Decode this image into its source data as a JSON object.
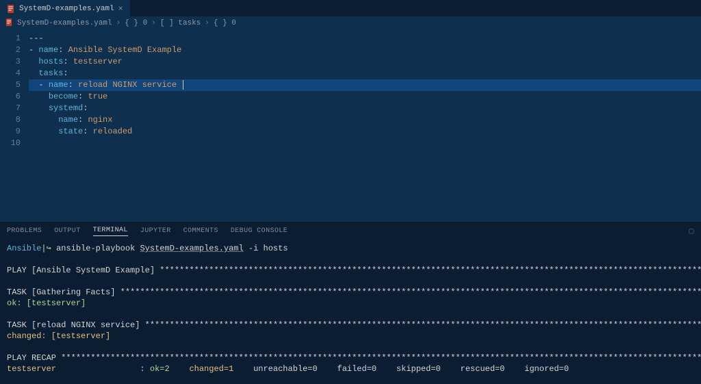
{
  "colors": {
    "editor_bg": "#0f2f4e",
    "panel_bg": "#0b1d33",
    "gutter_fg": "#6c7a8c",
    "text": "#d4d4d4",
    "key": "#5fb4d8",
    "string": "#d09a6a",
    "highlight_bg": "#12467a",
    "term_green": "#a6da95",
    "term_yellow": "#e5c07b",
    "term_cyan": "#5fb4d8",
    "file_icon": "#c0392b"
  },
  "tab": {
    "filename": "SystemD-examples.yaml",
    "dirty": false
  },
  "breadcrumbs": {
    "items": [
      {
        "icon": "file",
        "text": "SystemD-examples.yaml"
      },
      {
        "icon": "braces",
        "text": "{ } 0"
      },
      {
        "icon": "brackets",
        "text": "[  ] tasks"
      },
      {
        "icon": "braces",
        "text": "{ } 0"
      }
    ],
    "separator": "›"
  },
  "editor": {
    "highlighted_line": 5,
    "lines": [
      {
        "n": 1,
        "tokens": [
          [
            "punc",
            "---"
          ]
        ]
      },
      {
        "n": 2,
        "tokens": [
          [
            "punc",
            "- "
          ],
          [
            "key",
            "name"
          ],
          [
            "punc",
            ": "
          ],
          [
            "str",
            "Ansible SystemD Example"
          ]
        ]
      },
      {
        "n": 3,
        "tokens": [
          [
            "punc",
            "  "
          ],
          [
            "key",
            "hosts"
          ],
          [
            "punc",
            ": "
          ],
          [
            "str",
            "testserver"
          ]
        ]
      },
      {
        "n": 4,
        "tokens": [
          [
            "punc",
            "  "
          ],
          [
            "key",
            "tasks"
          ],
          [
            "punc",
            ":"
          ]
        ]
      },
      {
        "n": 5,
        "tokens": [
          [
            "punc",
            "  - "
          ],
          [
            "key",
            "name"
          ],
          [
            "punc",
            ": "
          ],
          [
            "str",
            "reload NGINX service "
          ]
        ]
      },
      {
        "n": 6,
        "tokens": [
          [
            "punc",
            "    "
          ],
          [
            "key",
            "become"
          ],
          [
            "punc",
            ": "
          ],
          [
            "str",
            "true"
          ]
        ]
      },
      {
        "n": 7,
        "tokens": [
          [
            "punc",
            "    "
          ],
          [
            "key",
            "systemd"
          ],
          [
            "punc",
            ":"
          ]
        ]
      },
      {
        "n": 8,
        "tokens": [
          [
            "punc",
            "      "
          ],
          [
            "key",
            "name"
          ],
          [
            "punc",
            ": "
          ],
          [
            "str",
            "nginx"
          ]
        ]
      },
      {
        "n": 9,
        "tokens": [
          [
            "punc",
            "      "
          ],
          [
            "key",
            "state"
          ],
          [
            "punc",
            ": "
          ],
          [
            "str",
            "reloaded"
          ]
        ]
      },
      {
        "n": 10,
        "tokens": []
      }
    ]
  },
  "panel": {
    "tabs": [
      "PROBLEMS",
      "OUTPUT",
      "TERMINAL",
      "JUPYTER",
      "COMMENTS",
      "DEBUG CONSOLE"
    ],
    "active": "TERMINAL"
  },
  "terminal": {
    "prompt_host": "Ansible",
    "prompt_arrow": "↪",
    "width": 170,
    "lines": [
      {
        "type": "prompt",
        "cmd_parts": [
          [
            "cmd",
            "ansible-playbook "
          ],
          [
            "file",
            "SystemD-examples.yaml"
          ],
          [
            "cmd",
            " -i hosts"
          ]
        ]
      },
      {
        "type": "blank"
      },
      {
        "type": "star",
        "label": "PLAY [Ansible SystemD Example] "
      },
      {
        "type": "blank"
      },
      {
        "type": "star",
        "label": "TASK [Gathering Facts] "
      },
      {
        "type": "plain",
        "spans": [
          [
            "green",
            "ok: [testserver]"
          ]
        ]
      },
      {
        "type": "blank"
      },
      {
        "type": "star",
        "label": "TASK [reload NGINX service] "
      },
      {
        "type": "plain",
        "spans": [
          [
            "yellow",
            "changed: [testserver]"
          ]
        ]
      },
      {
        "type": "blank"
      },
      {
        "type": "star",
        "label": "PLAY RECAP "
      },
      {
        "type": "plain",
        "spans": [
          [
            "yellow",
            "testserver              "
          ],
          [
            "white",
            "   : "
          ],
          [
            "green",
            "ok=2    "
          ],
          [
            "yellow",
            "changed=1    "
          ],
          [
            "white",
            "unreachable=0    failed=0    skipped=0    rescued=0    ignored=0"
          ]
        ]
      },
      {
        "type": "blank"
      },
      {
        "type": "prompt-cursor"
      }
    ]
  }
}
